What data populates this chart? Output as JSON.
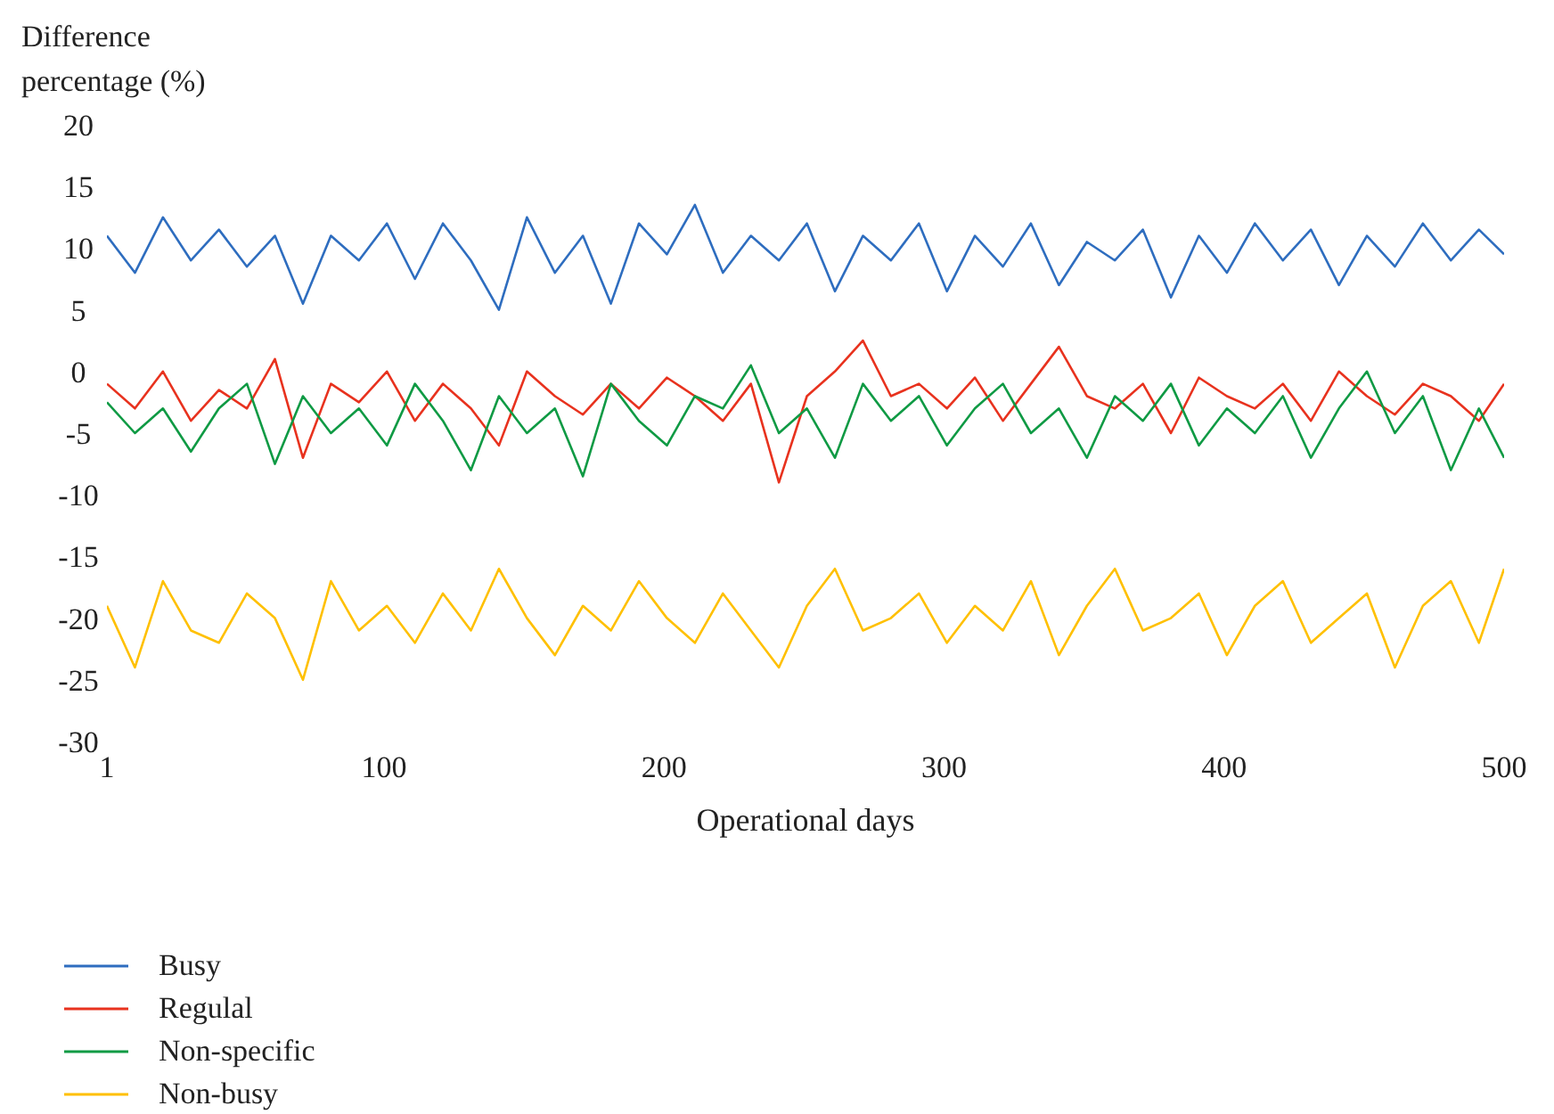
{
  "chart_data": {
    "type": "line",
    "xlabel": "Operational days",
    "ylabel": "Difference percentage (%)",
    "x": [
      1,
      11,
      21,
      31,
      41,
      51,
      61,
      71,
      81,
      91,
      101,
      111,
      121,
      131,
      141,
      151,
      161,
      171,
      181,
      191,
      201,
      211,
      221,
      231,
      241,
      251,
      261,
      271,
      281,
      291,
      301,
      311,
      321,
      331,
      341,
      351,
      361,
      371,
      381,
      391,
      401,
      411,
      421,
      431,
      441,
      451,
      461,
      471,
      481,
      491,
      500
    ],
    "xlim": [
      1,
      500
    ],
    "xticks": [
      1,
      100,
      200,
      300,
      400,
      500
    ],
    "ylim": [
      -30,
      20
    ],
    "yticks": [
      -30,
      -25,
      -20,
      -15,
      -10,
      -5,
      0,
      5,
      10,
      15,
      20
    ],
    "legend": "bottom left",
    "series": [
      {
        "name": "Busy",
        "color": "#2e6dbf",
        "values": [
          11,
          8,
          12.5,
          9,
          11.5,
          8.5,
          11,
          5.5,
          11,
          9,
          12,
          7.5,
          12,
          9,
          5,
          12.5,
          8,
          11,
          5.5,
          12,
          9.5,
          13.5,
          8,
          11,
          9,
          12,
          6.5,
          11,
          9,
          12,
          6.5,
          11,
          8.5,
          12,
          7,
          10.5,
          9,
          11.5,
          6,
          11,
          8,
          12,
          9,
          11.5,
          7,
          11,
          8.5,
          12,
          9,
          11.5,
          9.5
        ]
      },
      {
        "name": "Regulal",
        "color": "#e8321e",
        "values": [
          -1,
          -3,
          0,
          -4,
          -1.5,
          -3,
          1,
          -7,
          -1,
          -2.5,
          0,
          -4,
          -1,
          -3,
          -6,
          0,
          -2,
          -3.5,
          -1,
          -3,
          -0.5,
          -2,
          -4,
          -1,
          -9,
          -2,
          0,
          2.5,
          -2,
          -1,
          -3,
          -0.5,
          -4,
          -1,
          2,
          -2,
          -3,
          -1,
          -5,
          -0.5,
          -2,
          -3,
          -1,
          -4,
          0,
          -2,
          -3.5,
          -1,
          -2,
          -4,
          -1
        ]
      },
      {
        "name": "Non-specific",
        "color": "#0f9a44",
        "values": [
          -2.5,
          -5,
          -3,
          -6.5,
          -3,
          -1,
          -7.5,
          -2,
          -5,
          -3,
          -6,
          -1,
          -4,
          -8,
          -2,
          -5,
          -3,
          -8.5,
          -1,
          -4,
          -6,
          -2,
          -3,
          0.5,
          -5,
          -3,
          -7,
          -1,
          -4,
          -2,
          -6,
          -3,
          -1,
          -5,
          -3,
          -7,
          -2,
          -4,
          -1,
          -6,
          -3,
          -5,
          -2,
          -7,
          -3,
          0,
          -5,
          -2,
          -8,
          -3,
          -7
        ]
      },
      {
        "name": "Non-busy",
        "color": "#ffc000",
        "values": [
          -19,
          -24,
          -17,
          -21,
          -22,
          -18,
          -20,
          -25,
          -17,
          -21,
          -19,
          -22,
          -18,
          -21,
          -16,
          -20,
          -23,
          -19,
          -21,
          -17,
          -20,
          -22,
          -18,
          -21,
          -24,
          -19,
          -16,
          -21,
          -20,
          -18,
          -22,
          -19,
          -21,
          -17,
          -23,
          -19,
          -16,
          -21,
          -20,
          -18,
          -23,
          -19,
          -17,
          -22,
          -20,
          -18,
          -24,
          -19,
          -17,
          -22,
          -16
        ]
      }
    ]
  }
}
